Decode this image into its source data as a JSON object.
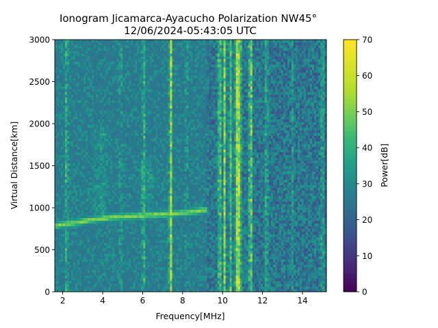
{
  "chart_data": {
    "type": "heatmap",
    "title_line1": "Ionogram Jicamarca-Ayacucho Polarization NW45°",
    "title_line2": "12/06/2024-05:43:05 UTC",
    "xlabel": "Frequency[MHz]",
    "ylabel": "Virtual Distance[km]",
    "xlim": [
      1.6,
      15.2
    ],
    "ylim": [
      0,
      3000
    ],
    "xticks": [
      2,
      4,
      6,
      8,
      10,
      12,
      14
    ],
    "yticks": [
      0,
      500,
      1000,
      1500,
      2000,
      2500,
      3000
    ],
    "colorbar": {
      "label": "Power[dB]",
      "range": [
        0,
        70
      ],
      "ticks": [
        0,
        10,
        20,
        30,
        40,
        50,
        60,
        70
      ],
      "colormap": "viridis"
    },
    "background_level_db": 25,
    "interference_lines": [
      {
        "freq_mhz": 2.2,
        "power_db": 40
      },
      {
        "freq_mhz": 4.9,
        "power_db": 34
      },
      {
        "freq_mhz": 6.05,
        "power_db": 42
      },
      {
        "freq_mhz": 7.4,
        "power_db": 55
      },
      {
        "freq_mhz": 8.2,
        "power_db": 34
      },
      {
        "freq_mhz": 9.85,
        "power_db": 50
      },
      {
        "freq_mhz": 10.1,
        "power_db": 52
      },
      {
        "freq_mhz": 10.4,
        "power_db": 44
      },
      {
        "freq_mhz": 10.7,
        "power_db": 58
      },
      {
        "freq_mhz": 10.85,
        "power_db": 60
      },
      {
        "freq_mhz": 11.4,
        "power_db": 55
      },
      {
        "freq_mhz": 12.2,
        "power_db": 38
      },
      {
        "freq_mhz": 13.5,
        "power_db": 32
      },
      {
        "freq_mhz": 15.0,
        "power_db": 38
      }
    ],
    "echo_trace": {
      "points": [
        [
          1.6,
          790
        ],
        [
          2.5,
          820
        ],
        [
          3.5,
          860
        ],
        [
          4.5,
          890
        ],
        [
          6.0,
          910
        ],
        [
          7.5,
          930
        ],
        [
          8.7,
          960
        ],
        [
          9.2,
          980
        ]
      ],
      "power_db": 52
    },
    "diffuse_bands": [
      {
        "freq_mhz": 3.9,
        "from_km": 900,
        "to_km": 2000,
        "power_db": 38
      },
      {
        "freq_mhz": 6.3,
        "from_km": 950,
        "to_km": 1600,
        "power_db": 38
      }
    ],
    "colors": {
      "viridis_0": "#440154",
      "viridis_10": "#482878",
      "viridis_20": "#3e4989",
      "viridis_30": "#31688e",
      "viridis_40": "#26828e",
      "viridis_50": "#1f9e89",
      "viridis_60": "#35b779",
      "viridis_70": "#6ece58",
      "viridis_80": "#b5de2b",
      "viridis_100": "#fde725"
    }
  }
}
